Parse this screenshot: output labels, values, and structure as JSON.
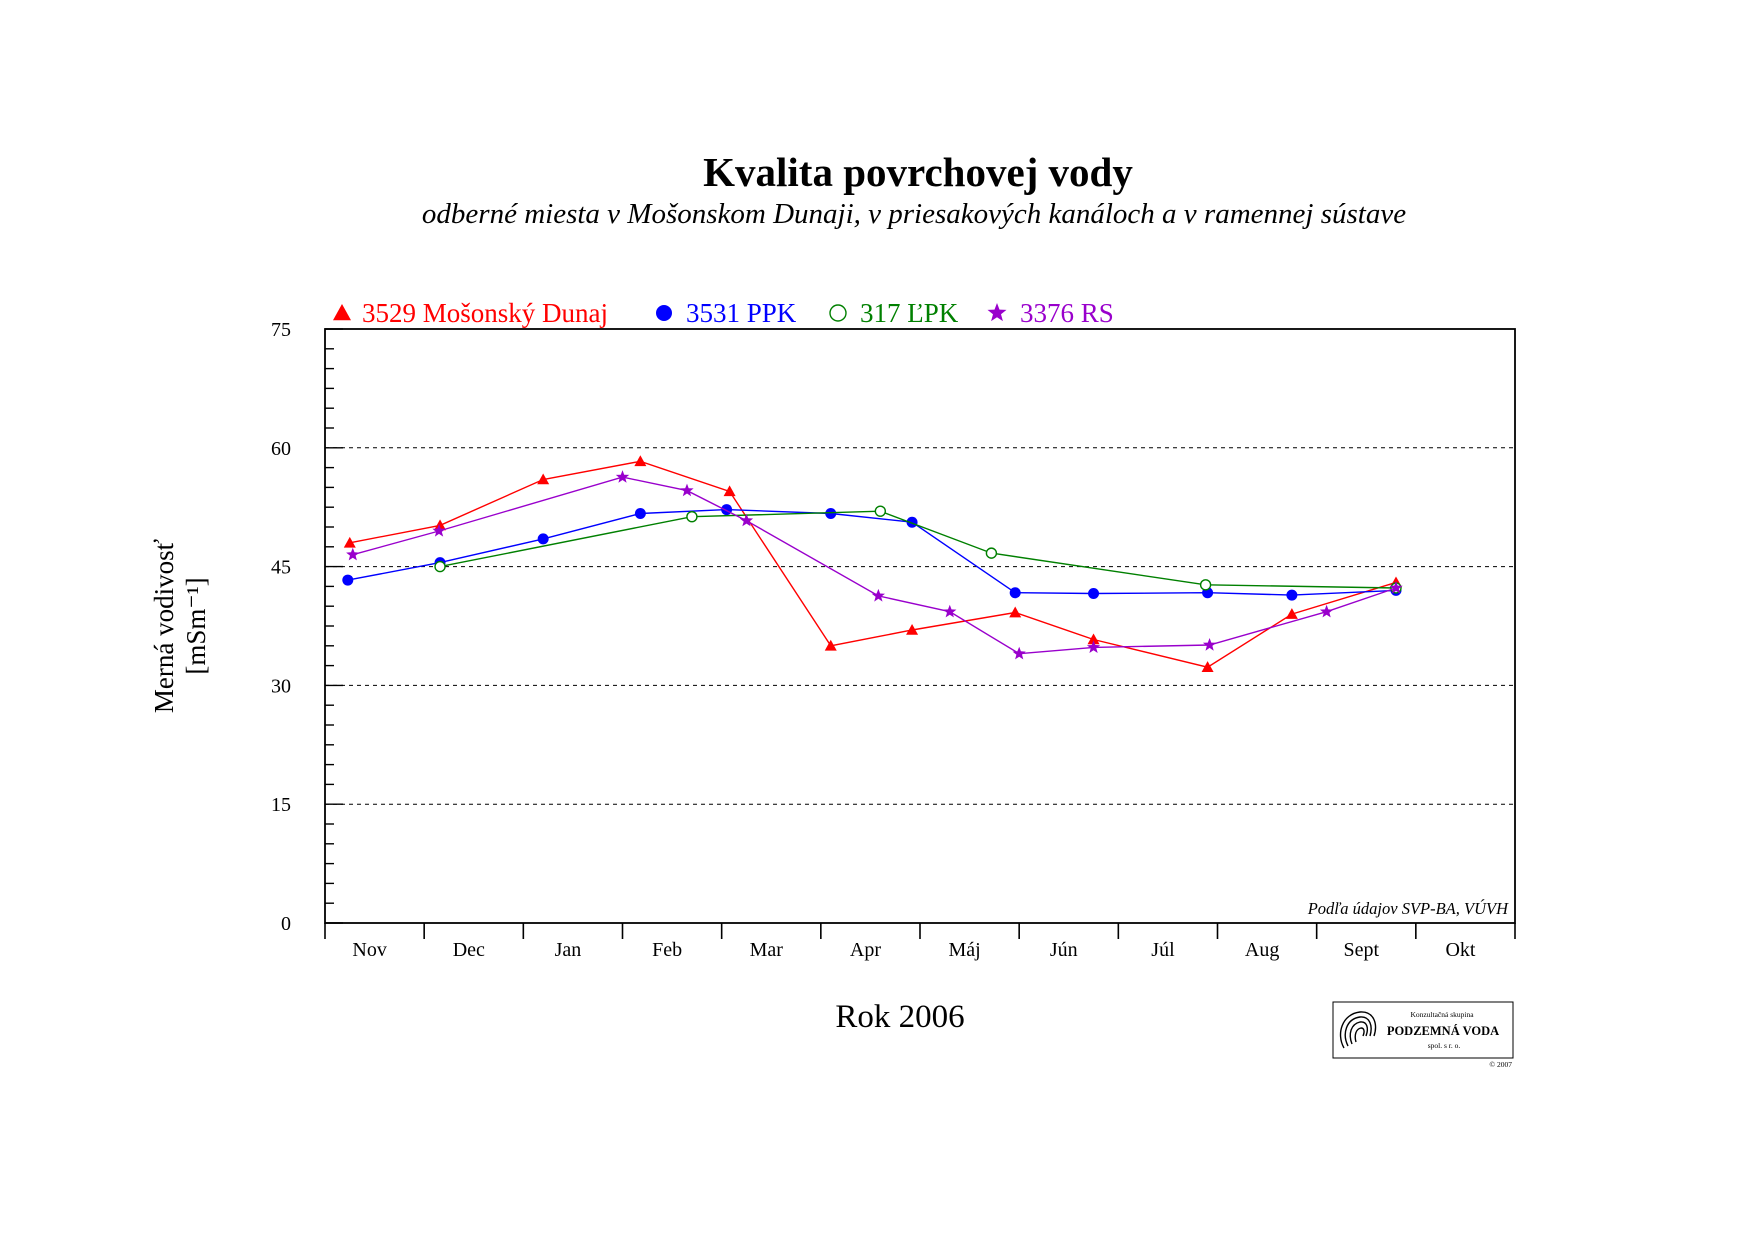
{
  "chart_data": {
    "type": "line",
    "title": "Kvalita povrchovej vody",
    "subtitle": "odberné miesta v Mošonskom Dunaji, v priesakových kanáloch a v ramennej sústave",
    "xlabel": "Rok 2006",
    "ylabel_line1": "Merná vodivosť",
    "ylabel_line2": "[mSm⁻¹]",
    "ylim": [
      0,
      75
    ],
    "yticks": [
      0,
      15,
      30,
      45,
      60,
      75
    ],
    "grid_y": [
      15,
      30,
      45,
      60
    ],
    "month_labels": [
      "Nov",
      "Dec",
      "Jan",
      "Feb",
      "Mar",
      "Apr",
      "Máj",
      "Jún",
      "Júl",
      "Aug",
      "Sept",
      "Okt"
    ],
    "xlim": [
      0,
      12
    ],
    "legend_position": "top-left",
    "source_note": "Podľa údajov SVP-BA, VÚVH",
    "series": [
      {
        "name": "3529 Mošonský Dunaj",
        "color": "#ff0000",
        "marker": "triangle",
        "x": [
          0.25,
          1.16,
          2.2,
          3.18,
          4.08,
          5.1,
          5.92,
          6.96,
          7.75,
          8.9,
          9.75,
          10.8
        ],
        "y": [
          48,
          50.2,
          56,
          58.3,
          54.5,
          35,
          37,
          39.2,
          35.8,
          32.3,
          39,
          43
        ]
      },
      {
        "name": "3531 PPK",
        "color": "#0000ff",
        "marker": "circle",
        "x": [
          0.23,
          1.16,
          2.2,
          3.18,
          4.05,
          5.1,
          5.92,
          6.96,
          7.75,
          8.9,
          9.75,
          10.8
        ],
        "y": [
          43.3,
          45.5,
          48.5,
          51.7,
          52.2,
          51.7,
          50.6,
          41.7,
          41.6,
          41.7,
          41.4,
          42
        ]
      },
      {
        "name": "317 ĽPK",
        "color": "#008000",
        "marker": "circle-open",
        "x": [
          1.16,
          3.7,
          5.6,
          6.72,
          8.88,
          10.8
        ],
        "y": [
          45,
          51.3,
          52,
          46.7,
          42.7,
          42.3
        ]
      },
      {
        "name": "3376 RS",
        "color": "#9900cc",
        "marker": "star",
        "x": [
          0.28,
          1.15,
          3.0,
          3.65,
          4.25,
          5.58,
          6.3,
          7.0,
          7.75,
          8.92,
          10.1,
          10.8
        ],
        "y": [
          46.5,
          49.5,
          56.3,
          54.6,
          50.8,
          41.3,
          39.3,
          34,
          34.8,
          35.1,
          39.3,
          42.3
        ]
      }
    ]
  },
  "logo": {
    "small_top": "Konzultačná skupina",
    "name": "PODZEMNÁ VODA",
    "small_bottom": "spol. s r. o.",
    "copyright": "© 2007"
  }
}
